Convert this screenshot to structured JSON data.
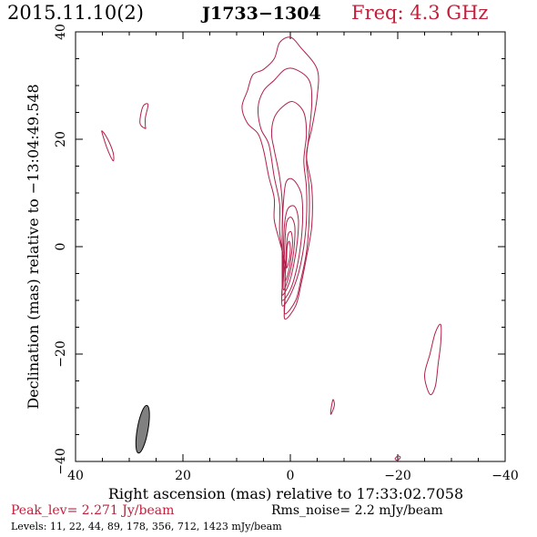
{
  "header": {
    "date": "2015.11.10(2)",
    "source": "J1733−1304",
    "freq": "Freq: 4.3 GHz"
  },
  "footer": {
    "peak": "Peak_lev=  2.271 Jy/beam",
    "rms": "Rms_noise=   2.2 mJy/beam",
    "levels": "Levels:  11,  22,  44,  89, 178, 356, 712, 1423 mJy/beam"
  },
  "colors": {
    "contour": "#b0204a",
    "beam": "#808080",
    "accent": "#c0203c"
  },
  "chart_data": {
    "type": "contour",
    "title": "",
    "xlabel": "Right ascension (mas) relative to 17:33:02.7058",
    "ylabel": "Declination (mas) relative to −13:04:49.548",
    "xlim": [
      40,
      -40
    ],
    "ylim": [
      -40,
      40
    ],
    "xticks": [
      40,
      20,
      0,
      -20,
      -40
    ],
    "yticks": [
      -40,
      -20,
      0,
      20,
      40
    ],
    "xtick_labels": [
      "40",
      "20",
      "0",
      "−20",
      "−40"
    ],
    "ytick_labels": [
      "−40",
      "−20",
      "0",
      "20",
      "40"
    ],
    "peak_jy_per_beam": 2.271,
    "rms_noise_mjy_per_beam": 2.2,
    "levels_mjy_per_beam": [
      11,
      22,
      44,
      89,
      178,
      356,
      712,
      1423
    ],
    "contours": [
      {
        "level": 11,
        "points": [
          [
            1,
            -13.5
          ],
          [
            -1,
            -11
          ],
          [
            -2,
            -7
          ],
          [
            -3,
            -2
          ],
          [
            -4,
            4
          ],
          [
            -4,
            11
          ],
          [
            -3,
            17
          ],
          [
            -4,
            22
          ],
          [
            -5,
            28
          ],
          [
            -5,
            33
          ],
          [
            -2,
            37
          ],
          [
            0,
            39
          ],
          [
            2,
            38
          ],
          [
            3,
            35
          ],
          [
            5,
            33
          ],
          [
            7,
            32
          ],
          [
            8,
            29
          ],
          [
            9,
            26
          ],
          [
            8,
            23
          ],
          [
            6,
            21
          ],
          [
            5,
            18
          ],
          [
            4,
            13
          ],
          [
            3,
            9
          ],
          [
            3,
            5
          ],
          [
            2,
            1
          ],
          [
            1,
            -3
          ],
          [
            1,
            -6
          ],
          [
            1,
            -10
          ]
        ]
      },
      {
        "level": 22,
        "points": [
          [
            1,
            -12.5
          ],
          [
            -1,
            -10
          ],
          [
            -2,
            -6
          ],
          [
            -3,
            -1
          ],
          [
            -3.5,
            5
          ],
          [
            -3.5,
            11
          ],
          [
            -3,
            16
          ],
          [
            -3.5,
            21
          ],
          [
            -4,
            27
          ],
          [
            -3.5,
            31
          ],
          [
            -1,
            33
          ],
          [
            1,
            33
          ],
          [
            3,
            31
          ],
          [
            5,
            29
          ],
          [
            6,
            26
          ],
          [
            5.5,
            22
          ],
          [
            4,
            19
          ],
          [
            3,
            13
          ],
          [
            2,
            8
          ],
          [
            2,
            3
          ],
          [
            1.5,
            -1
          ],
          [
            1,
            -5
          ],
          [
            1,
            -9
          ]
        ]
      },
      {
        "level": 44,
        "points": [
          [
            1.5,
            -11
          ],
          [
            0,
            -9
          ],
          [
            -1.5,
            -5
          ],
          [
            -2.5,
            0
          ],
          [
            -3,
            5
          ],
          [
            -3,
            11
          ],
          [
            -2.5,
            16
          ],
          [
            -3,
            21
          ],
          [
            -2.5,
            25
          ],
          [
            -0.5,
            27
          ],
          [
            1.5,
            26
          ],
          [
            3,
            24
          ],
          [
            3.5,
            21
          ],
          [
            3,
            18
          ],
          [
            2,
            13
          ],
          [
            1.5,
            8
          ],
          [
            1.5,
            3
          ],
          [
            1.5,
            -2
          ],
          [
            1.5,
            -7
          ]
        ]
      },
      {
        "level": 89,
        "points": [
          [
            1.5,
            -10
          ],
          [
            0,
            -8
          ],
          [
            -1.2,
            -4
          ],
          [
            -2,
            1
          ],
          [
            -2.3,
            6
          ],
          [
            -2,
            10
          ],
          [
            -0.5,
            12.5
          ],
          [
            0.8,
            12
          ],
          [
            1.3,
            8
          ],
          [
            1.5,
            3
          ],
          [
            1.5,
            -2
          ],
          [
            1.5,
            -7
          ]
        ]
      },
      {
        "level": 178,
        "points": [
          [
            1.5,
            -9
          ],
          [
            0.3,
            -7
          ],
          [
            -0.7,
            -3
          ],
          [
            -1.3,
            1
          ],
          [
            -1.5,
            5
          ],
          [
            -0.8,
            7.5
          ],
          [
            0.5,
            7
          ],
          [
            1.1,
            4
          ],
          [
            1.3,
            -1
          ],
          [
            1.4,
            -6
          ]
        ]
      },
      {
        "level": 356,
        "points": [
          [
            1.3,
            -8
          ],
          [
            0.4,
            -6
          ],
          [
            -0.4,
            -2.5
          ],
          [
            -0.8,
            1
          ],
          [
            -0.8,
            4
          ],
          [
            -0.1,
            5.5
          ],
          [
            0.7,
            4.5
          ],
          [
            1,
            1
          ],
          [
            1.2,
            -4
          ]
        ]
      },
      {
        "level": 712,
        "points": [
          [
            1,
            -6.5
          ],
          [
            0.3,
            -4.5
          ],
          [
            -0.2,
            -1.5
          ],
          [
            -0.4,
            1
          ],
          [
            -0.1,
            2.8
          ],
          [
            0.5,
            2
          ],
          [
            0.8,
            -1
          ],
          [
            0.9,
            -4.5
          ]
        ]
      },
      {
        "level": 1423,
        "points": [
          [
            0.7,
            -4
          ],
          [
            0.2,
            -2.5
          ],
          [
            0,
            -0.5
          ],
          [
            0.2,
            1
          ],
          [
            0.6,
            0
          ],
          [
            0.7,
            -2.5
          ]
        ]
      },
      {
        "level": 11,
        "points": [
          [
            33,
            16
          ],
          [
            34,
            18
          ],
          [
            35,
            21
          ],
          [
            35,
            21.5
          ],
          [
            34,
            20
          ],
          [
            33,
            17.5
          ]
        ]
      },
      {
        "level": 11,
        "points": [
          [
            27,
            22
          ],
          [
            28,
            23
          ],
          [
            27.5,
            26
          ],
          [
            26.5,
            26.5
          ],
          [
            27,
            24
          ],
          [
            27,
            22.5
          ]
        ]
      },
      {
        "level": 11,
        "points": [
          [
            -26,
            -27.5
          ],
          [
            -25,
            -24
          ],
          [
            -26,
            -20
          ],
          [
            -27,
            -16
          ],
          [
            -28,
            -14.5
          ],
          [
            -28,
            -18
          ],
          [
            -27.5,
            -22
          ],
          [
            -27,
            -26
          ]
        ]
      },
      {
        "level": 11,
        "points": [
          [
            -7.5,
            -31
          ],
          [
            -7.8,
            -29
          ],
          [
            -8,
            -28.5
          ],
          [
            -8.2,
            -29.5
          ],
          [
            -7.7,
            -31
          ]
        ]
      },
      {
        "level": 11,
        "points": [
          [
            -19.5,
            -39.5
          ],
          [
            -20,
            -39
          ],
          [
            -20.5,
            -39.2
          ],
          [
            -20,
            -39.8
          ]
        ]
      }
    ],
    "beam": {
      "center_x": 27.5,
      "center_y": -34,
      "major_mas": 9,
      "minor_mas": 2,
      "pa_deg": -10
    }
  }
}
